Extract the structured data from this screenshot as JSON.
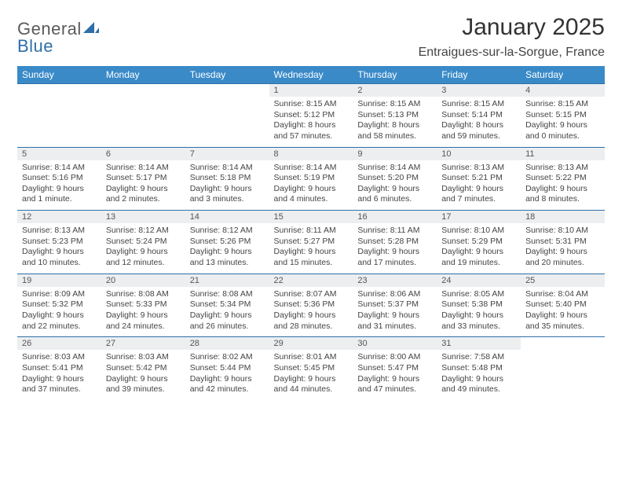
{
  "brand": {
    "part1": "General",
    "part2": "Blue",
    "color_general": "#5a5a5a",
    "color_blue": "#2f6fa8"
  },
  "title": "January 2025",
  "subtitle": "Entraigues-sur-la-Sorgue, France",
  "header_bg": "#3a8ac8",
  "header_fg": "#ffffff",
  "daynum_bg": "#eceef0",
  "rule_color": "#2f6fa8",
  "background": "#ffffff",
  "text_color": "#444444",
  "title_fontsize": 30,
  "subtitle_fontsize": 16,
  "cell_fontsize": 10.5,
  "day_headers": [
    "Sunday",
    "Monday",
    "Tuesday",
    "Wednesday",
    "Thursday",
    "Friday",
    "Saturday"
  ],
  "weeks": [
    [
      null,
      null,
      null,
      {
        "n": "1",
        "sunrise": "Sunrise: 8:15 AM",
        "sunset": "Sunset: 5:12 PM",
        "dl1": "Daylight: 8 hours",
        "dl2": "and 57 minutes."
      },
      {
        "n": "2",
        "sunrise": "Sunrise: 8:15 AM",
        "sunset": "Sunset: 5:13 PM",
        "dl1": "Daylight: 8 hours",
        "dl2": "and 58 minutes."
      },
      {
        "n": "3",
        "sunrise": "Sunrise: 8:15 AM",
        "sunset": "Sunset: 5:14 PM",
        "dl1": "Daylight: 8 hours",
        "dl2": "and 59 minutes."
      },
      {
        "n": "4",
        "sunrise": "Sunrise: 8:15 AM",
        "sunset": "Sunset: 5:15 PM",
        "dl1": "Daylight: 9 hours",
        "dl2": "and 0 minutes."
      }
    ],
    [
      {
        "n": "5",
        "sunrise": "Sunrise: 8:14 AM",
        "sunset": "Sunset: 5:16 PM",
        "dl1": "Daylight: 9 hours",
        "dl2": "and 1 minute."
      },
      {
        "n": "6",
        "sunrise": "Sunrise: 8:14 AM",
        "sunset": "Sunset: 5:17 PM",
        "dl1": "Daylight: 9 hours",
        "dl2": "and 2 minutes."
      },
      {
        "n": "7",
        "sunrise": "Sunrise: 8:14 AM",
        "sunset": "Sunset: 5:18 PM",
        "dl1": "Daylight: 9 hours",
        "dl2": "and 3 minutes."
      },
      {
        "n": "8",
        "sunrise": "Sunrise: 8:14 AM",
        "sunset": "Sunset: 5:19 PM",
        "dl1": "Daylight: 9 hours",
        "dl2": "and 4 minutes."
      },
      {
        "n": "9",
        "sunrise": "Sunrise: 8:14 AM",
        "sunset": "Sunset: 5:20 PM",
        "dl1": "Daylight: 9 hours",
        "dl2": "and 6 minutes."
      },
      {
        "n": "10",
        "sunrise": "Sunrise: 8:13 AM",
        "sunset": "Sunset: 5:21 PM",
        "dl1": "Daylight: 9 hours",
        "dl2": "and 7 minutes."
      },
      {
        "n": "11",
        "sunrise": "Sunrise: 8:13 AM",
        "sunset": "Sunset: 5:22 PM",
        "dl1": "Daylight: 9 hours",
        "dl2": "and 8 minutes."
      }
    ],
    [
      {
        "n": "12",
        "sunrise": "Sunrise: 8:13 AM",
        "sunset": "Sunset: 5:23 PM",
        "dl1": "Daylight: 9 hours",
        "dl2": "and 10 minutes."
      },
      {
        "n": "13",
        "sunrise": "Sunrise: 8:12 AM",
        "sunset": "Sunset: 5:24 PM",
        "dl1": "Daylight: 9 hours",
        "dl2": "and 12 minutes."
      },
      {
        "n": "14",
        "sunrise": "Sunrise: 8:12 AM",
        "sunset": "Sunset: 5:26 PM",
        "dl1": "Daylight: 9 hours",
        "dl2": "and 13 minutes."
      },
      {
        "n": "15",
        "sunrise": "Sunrise: 8:11 AM",
        "sunset": "Sunset: 5:27 PM",
        "dl1": "Daylight: 9 hours",
        "dl2": "and 15 minutes."
      },
      {
        "n": "16",
        "sunrise": "Sunrise: 8:11 AM",
        "sunset": "Sunset: 5:28 PM",
        "dl1": "Daylight: 9 hours",
        "dl2": "and 17 minutes."
      },
      {
        "n": "17",
        "sunrise": "Sunrise: 8:10 AM",
        "sunset": "Sunset: 5:29 PM",
        "dl1": "Daylight: 9 hours",
        "dl2": "and 19 minutes."
      },
      {
        "n": "18",
        "sunrise": "Sunrise: 8:10 AM",
        "sunset": "Sunset: 5:31 PM",
        "dl1": "Daylight: 9 hours",
        "dl2": "and 20 minutes."
      }
    ],
    [
      {
        "n": "19",
        "sunrise": "Sunrise: 8:09 AM",
        "sunset": "Sunset: 5:32 PM",
        "dl1": "Daylight: 9 hours",
        "dl2": "and 22 minutes."
      },
      {
        "n": "20",
        "sunrise": "Sunrise: 8:08 AM",
        "sunset": "Sunset: 5:33 PM",
        "dl1": "Daylight: 9 hours",
        "dl2": "and 24 minutes."
      },
      {
        "n": "21",
        "sunrise": "Sunrise: 8:08 AM",
        "sunset": "Sunset: 5:34 PM",
        "dl1": "Daylight: 9 hours",
        "dl2": "and 26 minutes."
      },
      {
        "n": "22",
        "sunrise": "Sunrise: 8:07 AM",
        "sunset": "Sunset: 5:36 PM",
        "dl1": "Daylight: 9 hours",
        "dl2": "and 28 minutes."
      },
      {
        "n": "23",
        "sunrise": "Sunrise: 8:06 AM",
        "sunset": "Sunset: 5:37 PM",
        "dl1": "Daylight: 9 hours",
        "dl2": "and 31 minutes."
      },
      {
        "n": "24",
        "sunrise": "Sunrise: 8:05 AM",
        "sunset": "Sunset: 5:38 PM",
        "dl1": "Daylight: 9 hours",
        "dl2": "and 33 minutes."
      },
      {
        "n": "25",
        "sunrise": "Sunrise: 8:04 AM",
        "sunset": "Sunset: 5:40 PM",
        "dl1": "Daylight: 9 hours",
        "dl2": "and 35 minutes."
      }
    ],
    [
      {
        "n": "26",
        "sunrise": "Sunrise: 8:03 AM",
        "sunset": "Sunset: 5:41 PM",
        "dl1": "Daylight: 9 hours",
        "dl2": "and 37 minutes."
      },
      {
        "n": "27",
        "sunrise": "Sunrise: 8:03 AM",
        "sunset": "Sunset: 5:42 PM",
        "dl1": "Daylight: 9 hours",
        "dl2": "and 39 minutes."
      },
      {
        "n": "28",
        "sunrise": "Sunrise: 8:02 AM",
        "sunset": "Sunset: 5:44 PM",
        "dl1": "Daylight: 9 hours",
        "dl2": "and 42 minutes."
      },
      {
        "n": "29",
        "sunrise": "Sunrise: 8:01 AM",
        "sunset": "Sunset: 5:45 PM",
        "dl1": "Daylight: 9 hours",
        "dl2": "and 44 minutes."
      },
      {
        "n": "30",
        "sunrise": "Sunrise: 8:00 AM",
        "sunset": "Sunset: 5:47 PM",
        "dl1": "Daylight: 9 hours",
        "dl2": "and 47 minutes."
      },
      {
        "n": "31",
        "sunrise": "Sunrise: 7:58 AM",
        "sunset": "Sunset: 5:48 PM",
        "dl1": "Daylight: 9 hours",
        "dl2": "and 49 minutes."
      },
      null
    ]
  ]
}
